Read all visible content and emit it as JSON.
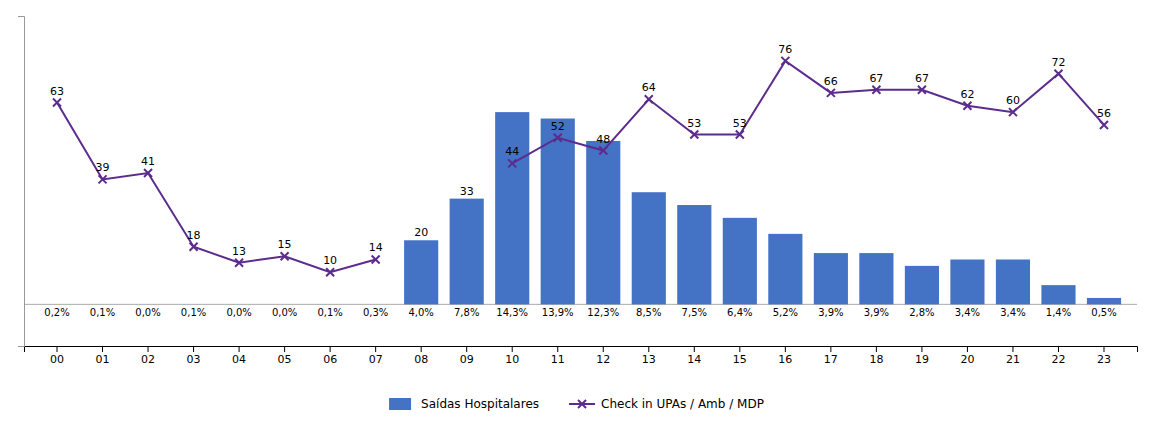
{
  "chart_data": {
    "type": "bar",
    "categories": [
      "00",
      "01",
      "02",
      "03",
      "04",
      "05",
      "06",
      "07",
      "08",
      "09",
      "10",
      "11",
      "12",
      "13",
      "14",
      "15",
      "16",
      "17",
      "18",
      "19",
      "20",
      "21",
      "22",
      "23"
    ],
    "series": [
      {
        "name": "Saídas Hospitalares",
        "type": "bar",
        "color": "#4472C4",
        "values": [
          null,
          null,
          null,
          null,
          null,
          null,
          null,
          null,
          20,
          33,
          60,
          58,
          51,
          35,
          31,
          27,
          22,
          16,
          16,
          12,
          14,
          14,
          6,
          2
        ],
        "value_labels": [
          null,
          null,
          null,
          null,
          null,
          null,
          null,
          null,
          "20",
          "33",
          null,
          null,
          null,
          null,
          null,
          null,
          null,
          null,
          null,
          null,
          null,
          null,
          null,
          null
        ],
        "shares": [
          0.2,
          0.1,
          0.0,
          0.1,
          0.0,
          0.0,
          0.1,
          0.3,
          4.0,
          7.8,
          14.3,
          13.9,
          12.3,
          8.5,
          7.5,
          6.4,
          5.2,
          3.9,
          3.9,
          2.8,
          3.4,
          3.4,
          1.4,
          0.5
        ],
        "share_labels": [
          "0,2%",
          "0,1%",
          "0,0%",
          "0,1%",
          "0,0%",
          "0,0%",
          "0,1%",
          "0,3%",
          "4,0%",
          "7,8%",
          "14,3%",
          "13,9%",
          "12,3%",
          "8,5%",
          "7,5%",
          "6,4%",
          "5,2%",
          "3,9%",
          "3,9%",
          "2,8%",
          "3,4%",
          "3,4%",
          "1,4%",
          "0,5%"
        ]
      },
      {
        "name": "Check in UPAs / Amb / MDP",
        "type": "line",
        "color": "#5B2C8D",
        "marker": "x",
        "data_labels": true,
        "values": [
          63,
          39,
          41,
          18,
          13,
          15,
          10,
          14,
          null,
          null,
          44,
          52,
          48,
          64,
          53,
          53,
          76,
          66,
          67,
          67,
          62,
          60,
          72,
          56
        ]
      }
    ],
    "ylim": [
      -13,
      90
    ],
    "baseline": 0,
    "tick_labels": "x",
    "grid": false,
    "legend": "bottom"
  }
}
